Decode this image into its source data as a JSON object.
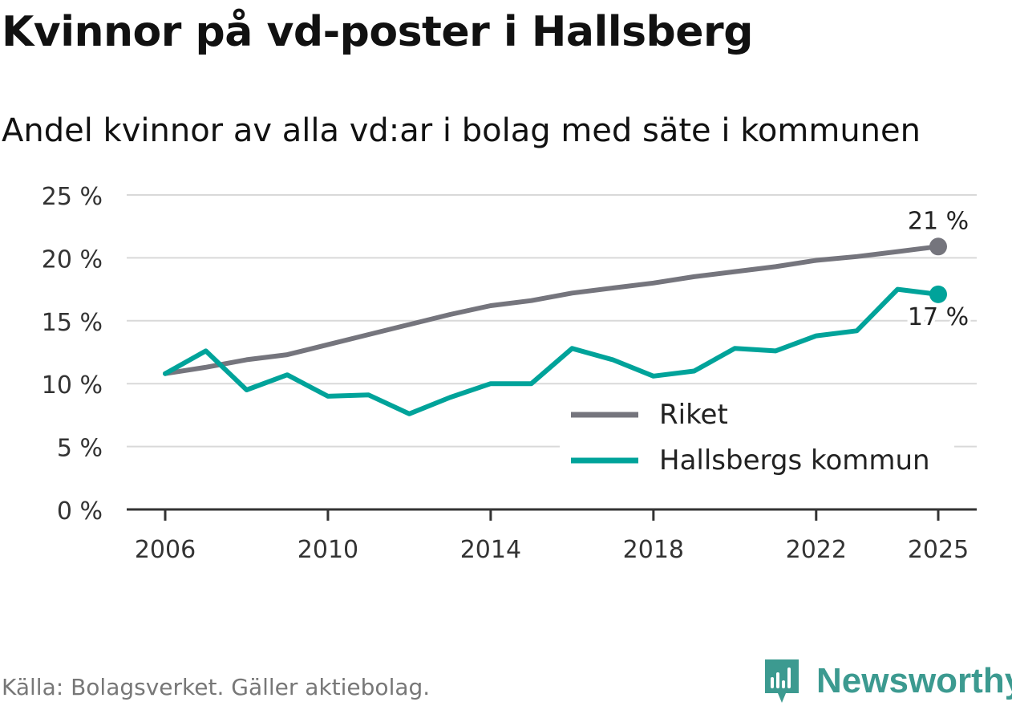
{
  "header": {
    "title": "Kvinnor på vd-poster i Hallsberg",
    "subtitle": "Andel kvinnor av alla vd:ar i bolag med säte i kommunen"
  },
  "footer": {
    "source": "Källa: Bolagsverket. Gäller aktiebolag.",
    "brand": "Newsworthy",
    "brand_color": "#3c9a90"
  },
  "chart_data": {
    "type": "line",
    "title": "Kvinnor på vd-poster i Hallsberg",
    "subtitle": "Andel kvinnor av alla vd:ar i bolag med säte i kommunen",
    "xlabel": "",
    "ylabel": "",
    "x": [
      2006,
      2007,
      2008,
      2009,
      2010,
      2011,
      2012,
      2013,
      2014,
      2015,
      2016,
      2017,
      2018,
      2019,
      2020,
      2021,
      2022,
      2023,
      2024,
      2025
    ],
    "xticks": [
      2006,
      2010,
      2014,
      2018,
      2022,
      2025
    ],
    "xtick_labels": [
      "2006",
      "2010",
      "2014",
      "2018",
      "2022",
      "2025"
    ],
    "xlim": [
      2006,
      2025
    ],
    "ylim": [
      0,
      25
    ],
    "yticks": [
      0,
      5,
      10,
      15,
      20,
      25
    ],
    "ytick_labels": [
      "0 %",
      "5 %",
      "10 %",
      "15 %",
      "20 %",
      "25 %"
    ],
    "grid": true,
    "legend_position": "bottom-right",
    "series": [
      {
        "name": "Riket",
        "color": "#75757d",
        "values": [
          10.8,
          11.3,
          11.9,
          12.3,
          13.1,
          13.9,
          14.7,
          15.5,
          16.2,
          16.6,
          17.2,
          17.6,
          18.0,
          18.5,
          18.9,
          19.3,
          19.8,
          20.1,
          20.5,
          20.9
        ],
        "end_label": "21 %"
      },
      {
        "name": "Hallsbergs kommun",
        "color": "#00a39a",
        "values": [
          10.8,
          12.6,
          9.5,
          10.7,
          9.0,
          9.1,
          7.6,
          8.9,
          10.0,
          10.0,
          12.8,
          11.9,
          10.6,
          11.0,
          12.8,
          12.6,
          13.8,
          14.2,
          17.5,
          17.1
        ],
        "end_label": "17 %"
      }
    ]
  }
}
